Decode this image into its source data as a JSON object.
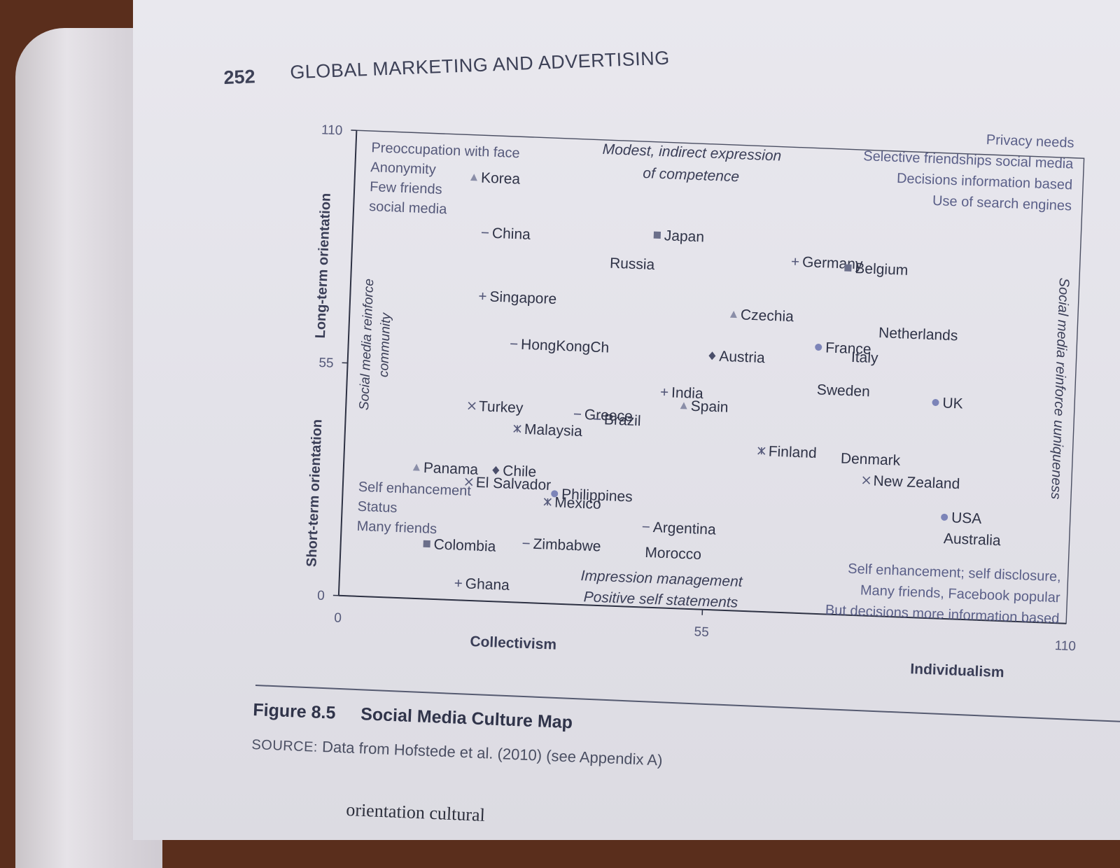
{
  "page_header": {
    "number": "252",
    "title": "GLOBAL MARKETING AND ADVERTISING"
  },
  "chart_data": {
    "type": "scatter",
    "xlabel_left": "Collectivism",
    "xlabel_right": "Individualism",
    "ylabel_top": "Long-term orientation",
    "ylabel_bottom": "Short-term orientation",
    "right_axis_label": "Social media reinforce uuniqueness",
    "left_inner_label": [
      "Social media reinforce",
      "community"
    ],
    "xlim": [
      0,
      110
    ],
    "ylim": [
      0,
      110
    ],
    "x_ticks": [
      "0",
      "55",
      "110"
    ],
    "y_ticks": [
      "0",
      "55",
      "110"
    ],
    "points": [
      {
        "label": "Korea",
        "x": 18,
        "y": 100,
        "marker": "triangle"
      },
      {
        "label": "China",
        "x": 20,
        "y": 87,
        "marker": "dash"
      },
      {
        "label": "Japan",
        "x": 46,
        "y": 88,
        "marker": "square"
      },
      {
        "label": "Russia",
        "x": 39,
        "y": 81,
        "marker": "none"
      },
      {
        "label": "Germany",
        "x": 67,
        "y": 83,
        "marker": "plus"
      },
      {
        "label": "Belgium",
        "x": 75,
        "y": 82,
        "marker": "square"
      },
      {
        "label": "Singapore",
        "x": 20,
        "y": 72,
        "marker": "plus"
      },
      {
        "label": "Czechia",
        "x": 58,
        "y": 70,
        "marker": "triangle"
      },
      {
        "label": "Netherlands",
        "x": 80,
        "y": 67,
        "marker": "none"
      },
      {
        "label": "France",
        "x": 71,
        "y": 63,
        "marker": "circle"
      },
      {
        "label": "Italy",
        "x": 76,
        "y": 61,
        "marker": "none"
      },
      {
        "label": "HongKongCh",
        "x": 25,
        "y": 61,
        "marker": "dash"
      },
      {
        "label": "Austria",
        "x": 55,
        "y": 60,
        "marker": "diamond"
      },
      {
        "label": "Sweden",
        "x": 71,
        "y": 53,
        "marker": "none"
      },
      {
        "label": "UK",
        "x": 89,
        "y": 51,
        "marker": "circle"
      },
      {
        "label": "India",
        "x": 48,
        "y": 51,
        "marker": "plus"
      },
      {
        "label": "Spain",
        "x": 51,
        "y": 48,
        "marker": "triangle"
      },
      {
        "label": "Turkey",
        "x": 19,
        "y": 46,
        "marker": "x"
      },
      {
        "label": "Greece",
        "x": 35,
        "y": 45,
        "marker": "dash"
      },
      {
        "label": "Malaysia",
        "x": 26,
        "y": 41,
        "marker": "asterisk"
      },
      {
        "label": "Brazil",
        "x": 38,
        "y": 44,
        "marker": "dash"
      },
      {
        "label": "Finland",
        "x": 63,
        "y": 38,
        "marker": "asterisk"
      },
      {
        "label": "Denmark",
        "x": 75,
        "y": 37,
        "marker": "none"
      },
      {
        "label": "New Zealand",
        "x": 79,
        "y": 32,
        "marker": "x"
      },
      {
        "label": "Panama",
        "x": 11,
        "y": 31,
        "marker": "triangle"
      },
      {
        "label": "Chile",
        "x": 23,
        "y": 31,
        "marker": "diamond"
      },
      {
        "label": "El Salvador",
        "x": 19,
        "y": 28,
        "marker": "x"
      },
      {
        "label": "Philippines",
        "x": 32,
        "y": 26,
        "marker": "circle"
      },
      {
        "label": "Mexico",
        "x": 31,
        "y": 24,
        "marker": "asterisk"
      },
      {
        "label": "USA",
        "x": 91,
        "y": 24,
        "marker": "circle"
      },
      {
        "label": "Australia",
        "x": 91,
        "y": 19,
        "marker": "none"
      },
      {
        "label": "Argentina",
        "x": 46,
        "y": 19,
        "marker": "dash"
      },
      {
        "label": "Morocco",
        "x": 46,
        "y": 13,
        "marker": "none"
      },
      {
        "label": "Colombia",
        "x": 13,
        "y": 13,
        "marker": "square"
      },
      {
        "label": "Zimbabwe",
        "x": 28,
        "y": 14,
        "marker": "dash"
      },
      {
        "label": "Ghana",
        "x": 18,
        "y": 4,
        "marker": "plus"
      }
    ],
    "annotations": {
      "top_left": [
        "Preoccupation with face",
        "Anonymity",
        "Few friends",
        "social media"
      ],
      "top_center": [
        "Modest, indirect expression",
        "of competence"
      ],
      "top_right": [
        "Privacy needs",
        "Selective friendships social media",
        "Decisions information based",
        "Use of search engines"
      ],
      "bottom_left": [
        "Self enhancement",
        "Status",
        "Many friends"
      ],
      "bottom_center": [
        "Impression management",
        "Positive self statements"
      ],
      "bottom_right": [
        "Self enhancement; self disclosure,",
        "Many friends, Facebook popular",
        "But decisions more information based"
      ]
    }
  },
  "caption": {
    "figure_label": "Figure 8.5",
    "figure_title": "Social Media Culture Map",
    "source_prefix": "SOURCE:",
    "source_text": " Data from Hofstede et al. (2010) (see Appendix A)"
  },
  "body_fragment": "orientation cultural"
}
